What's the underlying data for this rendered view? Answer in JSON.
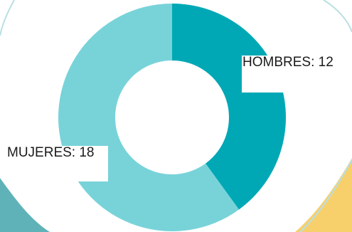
{
  "chart_data": {
    "type": "pie",
    "style": "donut",
    "categories": [
      "HOMBRES",
      "MUJERES"
    ],
    "values": [
      12,
      18
    ],
    "labels": [
      "HOMBRES: 12",
      "MUJERES: 18"
    ],
    "colors": [
      "#00a8b5",
      "#78d3d9"
    ]
  },
  "decor": {
    "left_band_color": "#5fb3b8",
    "right_band_color": "#f7cf6b",
    "background_color": "#ffffff"
  }
}
